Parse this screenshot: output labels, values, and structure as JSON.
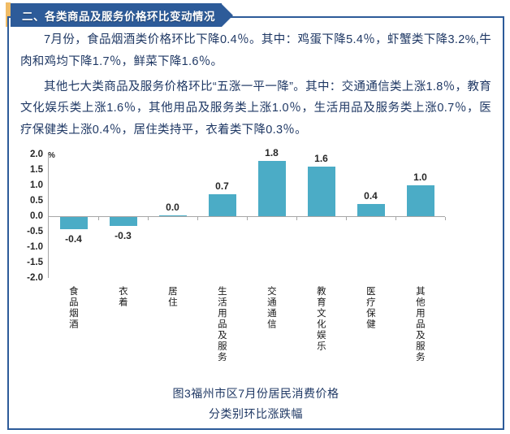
{
  "header": {
    "section_title": "二、各类商品及服务价格环比变动情况"
  },
  "paragraphs": {
    "p1": "7月份，食品烟酒类价格环比下降0.4％。其中：鸡蛋下降5.4％，虾蟹类下降3.2%,牛肉和鸡均下降1.7％，鲜菜下降1.6％。",
    "p2": "其他七大类商品及服务价格环比“五涨一平一降”。其中：交通通信类上涨1.8％，教育文化娱乐类上涨1.6％，其他用品及服务类上涨1.0％，生活用品及服务类上涨0.7％，医疗保健类上涨0.4％，居住类持平，衣着类下降0.3％。"
  },
  "chart_data": {
    "type": "bar",
    "categories": [
      "食品烟酒",
      "衣着",
      "居住",
      "生活用品及服务",
      "交通通信",
      "教育文化娱乐",
      "医疗保健",
      "其他用品及服务"
    ],
    "values": [
      -0.4,
      -0.3,
      0.0,
      0.7,
      1.8,
      1.6,
      0.4,
      1.0
    ],
    "data_labels": [
      "-0.4",
      "-0.3",
      "0.0",
      "0.7",
      "1.8",
      "1.6",
      "0.4",
      "1.0"
    ],
    "yticks": [
      "2.0",
      "1.5",
      "1.0",
      "0.5",
      "0.0",
      "-0.5",
      "-1.0",
      "-1.5",
      "-2.0"
    ],
    "y_unit": "%",
    "ylim": [
      -2.0,
      2.0
    ],
    "grid": false,
    "legend": "none",
    "bar_color": "#4bacc6",
    "title": "图3福州市区7月份居民消费价格分类别环比涨跌幅"
  },
  "caption": {
    "line1": "图3福州市区7月份居民消费价格",
    "line2": "分类别环比涨跌幅"
  },
  "colors": {
    "banner_bg": "#2d5b99",
    "accent_bar": "#f0bc66",
    "box_border": "#2d5b99",
    "body_text": "#1f3864",
    "bar_fill": "#4bacc6",
    "axis_line": "#a6a6a6"
  }
}
